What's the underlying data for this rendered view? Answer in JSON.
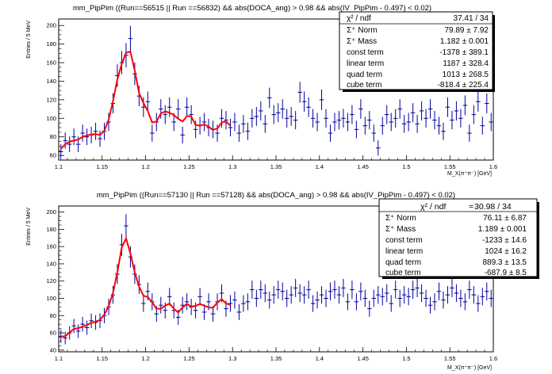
{
  "chart_data": [
    {
      "type": "scatter",
      "title": "mm_PipPim  ((Run==56515 || Run ==56832)  && abs(DOCA_ang) > 0.98 && abs(IV_PipPim - 0.497) < 0.02)",
      "xlabel": "M_X(π⁺π⁻) [GeV]",
      "ylabel": "Entries / 5 MeV",
      "xlim": [
        1.1,
        1.6
      ],
      "ylim": [
        55,
        207
      ],
      "xticks": [
        "1.1",
        "1.15",
        "1.2",
        "1.25",
        "1.3",
        "1.35",
        "1.4",
        "1.45",
        "1.5",
        "1.55",
        "1.6"
      ],
      "yticks": [
        "60",
        "80",
        "100",
        "120",
        "140",
        "160",
        "180",
        "200"
      ],
      "bin_width": 0.005,
      "series": [
        {
          "kind": "data-points",
          "color": "#000099",
          "x": [
            1.1025,
            1.1075,
            1.1125,
            1.1175,
            1.1225,
            1.1275,
            1.1325,
            1.1375,
            1.1425,
            1.1475,
            1.1525,
            1.1575,
            1.1625,
            1.1675,
            1.1725,
            1.1775,
            1.1825,
            1.1875,
            1.1925,
            1.1975,
            1.2025,
            1.2075,
            1.2125,
            1.2175,
            1.2225,
            1.2275,
            1.2325,
            1.2375,
            1.2425,
            1.2475,
            1.2525,
            1.2575,
            1.2625,
            1.2675,
            1.2725,
            1.2775,
            1.2825,
            1.2875,
            1.2925,
            1.2975,
            1.3025,
            1.3075,
            1.3125,
            1.3175,
            1.3225,
            1.3275,
            1.3325,
            1.3375,
            1.3425,
            1.3475,
            1.3525,
            1.3575,
            1.3625,
            1.3675,
            1.3725,
            1.3775,
            1.3825,
            1.3875,
            1.3925,
            1.3975,
            1.4025,
            1.4075,
            1.4125,
            1.4175,
            1.4225,
            1.4275,
            1.4325,
            1.4375,
            1.4425,
            1.4475,
            1.4525,
            1.4575,
            1.4625,
            1.4675,
            1.4725,
            1.4775,
            1.4825,
            1.4875,
            1.4925,
            1.4975,
            1.5025,
            1.5075,
            1.5125,
            1.5175,
            1.5225,
            1.5275,
            1.5325,
            1.5375,
            1.5425,
            1.5475,
            1.5525,
            1.5575,
            1.5625,
            1.5675,
            1.5725,
            1.5775,
            1.5825,
            1.5875,
            1.5925,
            1.5975
          ],
          "y": [
            64,
            76,
            72,
            80,
            72,
            84,
            80,
            82,
            86,
            78,
            86,
            96,
            116,
            146,
            160,
            168,
            186,
            148,
            124,
            112,
            118,
            84,
            96,
            110,
            104,
            112,
            96,
            110,
            82,
            112,
            104,
            88,
            92,
            96,
            90,
            88,
            84,
            100,
            98,
            90,
            96,
            84,
            94,
            86,
            100,
            102,
            108,
            94,
            122,
            104,
            106,
            110,
            100,
            102,
            98,
            128,
            118,
            112,
            100,
            96,
            120,
            100,
            84,
            96,
            98,
            100,
            96,
            104,
            88,
            110,
            92,
            98,
            84,
            68,
            92,
            104,
            96,
            100,
            110,
            94,
            96,
            106,
            94,
            108,
            100,
            110,
            98,
            92,
            86,
            112,
            98,
            108,
            100,
            114,
            84,
            104,
            118,
            92,
            116,
            96
          ],
          "err": [
            8,
            8.7,
            8.5,
            8.9,
            8.5,
            9.2,
            8.9,
            9,
            9.3,
            8.8,
            9.3,
            9.8,
            10.8,
            12.1,
            12.6,
            13,
            13.6,
            12.2,
            11.1,
            10.6,
            10.9,
            9.2,
            9.8,
            10.5,
            10.2,
            10.6,
            9.8,
            10.5,
            9.1,
            10.6,
            10.2,
            9.4,
            9.6,
            9.8,
            9.5,
            9.4,
            9.2,
            10,
            9.9,
            9.5,
            9.8,
            9.2,
            9.7,
            9.3,
            10,
            10.1,
            10.4,
            9.7,
            11,
            10.2,
            10.3,
            10.5,
            10,
            10.1,
            9.9,
            11.3,
            10.9,
            10.6,
            10,
            9.8,
            11,
            10,
            9.2,
            9.8,
            9.9,
            10,
            9.8,
            10.2,
            9.4,
            10.5,
            9.6,
            9.9,
            9.2,
            8.2,
            9.6,
            10.2,
            9.8,
            10,
            10.5,
            9.7,
            9.8,
            10.3,
            9.7,
            10.4,
            10,
            10.5,
            9.9,
            9.6,
            9.3,
            10.6,
            9.9,
            10.4,
            10,
            10.7,
            9.2,
            10.2,
            10.9,
            9.6,
            10.8,
            9.8
          ]
        },
        {
          "kind": "fit",
          "color": "#ff0000",
          "fit_range": [
            1.1,
            1.3
          ]
        }
      ],
      "stats": {
        "chi2": "χ² / ndf",
        "chi2_value": "37.41 / 34",
        "rows": [
          {
            "label": "Σ⁺ Norm",
            "value": "79.89 ± 7.92"
          },
          {
            "label": "Σ⁺ Mass",
            "value": "1.182 ± 0.001"
          },
          {
            "label": "const term",
            "value": "-1378 ± 389.1"
          },
          {
            "label": "linear term",
            "value": "1187 ± 328.4"
          },
          {
            "label": "quad term",
            "value": "1013 ± 268.5"
          },
          {
            "label": "cube term",
            "value": "-818.4 ± 225.4"
          }
        ]
      }
    },
    {
      "type": "scatter",
      "title": "mm_PipPim  ((Run==57130 || Run ==57128) && abs(DOCA_ang) > 0.98 && abs(IV_PipPim - 0.497) < 0.02)",
      "xlabel": "M_X(π⁺π⁻) [GeV]",
      "ylabel": "Entries / 5 MeV",
      "xlim": [
        1.1,
        1.6
      ],
      "ylim": [
        38,
        207
      ],
      "xticks": [
        "1.1",
        "1.15",
        "1.2",
        "1.25",
        "1.3",
        "1.35",
        "1.4",
        "1.45",
        "1.5",
        "1.55",
        "1.6"
      ],
      "yticks": [
        "40",
        "60",
        "80",
        "100",
        "120",
        "140",
        "160",
        "180",
        "200"
      ],
      "bin_width": 0.005,
      "series": [
        {
          "kind": "data-points",
          "color": "#000099",
          "x": [
            1.1025,
            1.1075,
            1.1125,
            1.1175,
            1.1225,
            1.1275,
            1.1325,
            1.1375,
            1.1425,
            1.1475,
            1.1525,
            1.1575,
            1.1625,
            1.1675,
            1.1725,
            1.1775,
            1.1825,
            1.1875,
            1.1925,
            1.1975,
            1.2025,
            1.2075,
            1.2125,
            1.2175,
            1.2225,
            1.2275,
            1.2325,
            1.2375,
            1.2425,
            1.2475,
            1.2525,
            1.2575,
            1.2625,
            1.2675,
            1.2725,
            1.2775,
            1.2825,
            1.2875,
            1.2925,
            1.2975,
            1.3025,
            1.3075,
            1.3125,
            1.3175,
            1.3225,
            1.3275,
            1.3325,
            1.3375,
            1.3425,
            1.3475,
            1.3525,
            1.3575,
            1.3625,
            1.3675,
            1.3725,
            1.3775,
            1.3825,
            1.3875,
            1.3925,
            1.3975,
            1.4025,
            1.4075,
            1.4125,
            1.4175,
            1.4225,
            1.4275,
            1.4325,
            1.4375,
            1.4425,
            1.4475,
            1.4525,
            1.4575,
            1.4625,
            1.4675,
            1.4725,
            1.4775,
            1.4825,
            1.4875,
            1.4925,
            1.4975,
            1.5025,
            1.5075,
            1.5125,
            1.5175,
            1.5225,
            1.5275,
            1.5325,
            1.5375,
            1.5425,
            1.5475,
            1.5525,
            1.5575,
            1.5625,
            1.5675,
            1.5725,
            1.5775,
            1.5825,
            1.5875,
            1.5925,
            1.5975
          ],
          "y": [
            56,
            54,
            60,
            68,
            62,
            70,
            66,
            74,
            72,
            74,
            80,
            90,
            104,
            128,
            162,
            184,
            148,
            128,
            116,
            94,
            108,
            96,
            82,
            92,
            86,
            102,
            86,
            78,
            92,
            96,
            90,
            86,
            102,
            84,
            96,
            82,
            96,
            106,
            88,
            94,
            98,
            84,
            94,
            96,
            110,
            100,
            110,
            106,
            98,
            104,
            110,
            108,
            100,
            104,
            112,
            106,
            104,
            110,
            94,
            98,
            104,
            100,
            108,
            110,
            104,
            112,
            96,
            110,
            96,
            108,
            100,
            88,
            100,
            104,
            102,
            106,
            94,
            110,
            100,
            104,
            102,
            110,
            112,
            106,
            100,
            92,
            96,
            108,
            98,
            104,
            112,
            106,
            100,
            96,
            110,
            104,
            94,
            102,
            108,
            100
          ],
          "err": [
            7.5,
            7.3,
            7.7,
            8.2,
            7.9,
            8.4,
            8.1,
            8.6,
            8.5,
            8.6,
            8.9,
            9.5,
            10.2,
            11.3,
            12.7,
            13.6,
            12.2,
            11.3,
            10.8,
            9.7,
            10.4,
            9.8,
            9.1,
            9.6,
            9.3,
            10.1,
            9.3,
            8.8,
            9.6,
            9.8,
            9.5,
            9.3,
            10.1,
            9.2,
            9.8,
            9.1,
            9.8,
            10.3,
            9.4,
            9.7,
            9.9,
            9.2,
            9.7,
            9.8,
            10.5,
            10,
            10.5,
            10.3,
            9.9,
            10.2,
            10.5,
            10.4,
            10,
            10.2,
            10.6,
            10.3,
            10.2,
            10.5,
            9.7,
            9.9,
            10.2,
            10,
            10.4,
            10.5,
            10.2,
            10.6,
            9.8,
            10.5,
            9.8,
            10.4,
            10,
            9.4,
            10,
            10.2,
            10.1,
            10.3,
            9.7,
            10.5,
            10,
            10.2,
            10.1,
            10.5,
            10.6,
            10.3,
            10,
            9.6,
            9.8,
            10.4,
            9.9,
            10.2,
            10.6,
            10.3,
            10,
            9.8,
            10.5,
            10.2,
            9.7,
            10.1,
            10.4,
            10
          ]
        },
        {
          "kind": "fit",
          "color": "#ff0000",
          "fit_range": [
            1.1,
            1.3
          ]
        }
      ],
      "stats": {
        "chi2": "χ² / ndf",
        "chi2_value": "30.98 / 34",
        "rows": [
          {
            "label": "Σ⁺ Norm",
            "value": "76.11 ± 6.87"
          },
          {
            "label": "Σ⁺ Mass",
            "value": "1.189 ± 0.001"
          },
          {
            "label": "const term",
            "value": "-1233 ± 14.6"
          },
          {
            "label": "linear term",
            "value": "1024 ± 16.2"
          },
          {
            "label": "quad term",
            "value": "889.3 ± 13.5"
          },
          {
            "label": "cube term",
            "value": "-687.9 ± 8.5"
          }
        ]
      }
    }
  ]
}
